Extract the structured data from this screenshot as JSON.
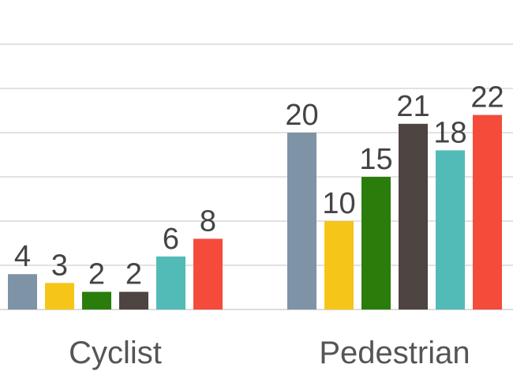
{
  "chart_data": {
    "type": "bar",
    "title": "",
    "xlabel": "",
    "ylabel": "",
    "categories": [
      "Cyclist",
      "Pedestrian"
    ],
    "series": [
      {
        "values": [
          4,
          20
        ],
        "color": "#7f93a6"
      },
      {
        "values": [
          3,
          10
        ],
        "color": "#f5c518"
      },
      {
        "values": [
          2,
          15
        ],
        "color": "#2a7d0a"
      },
      {
        "values": [
          2,
          21
        ],
        "color": "#4e4441"
      },
      {
        "values": [
          6,
          18
        ],
        "color": "#52bbb7"
      },
      {
        "values": [
          8,
          22
        ],
        "color": "#f44b3a"
      }
    ],
    "ylim": [
      0,
      30
    ],
    "grid": true,
    "legend": "none"
  }
}
